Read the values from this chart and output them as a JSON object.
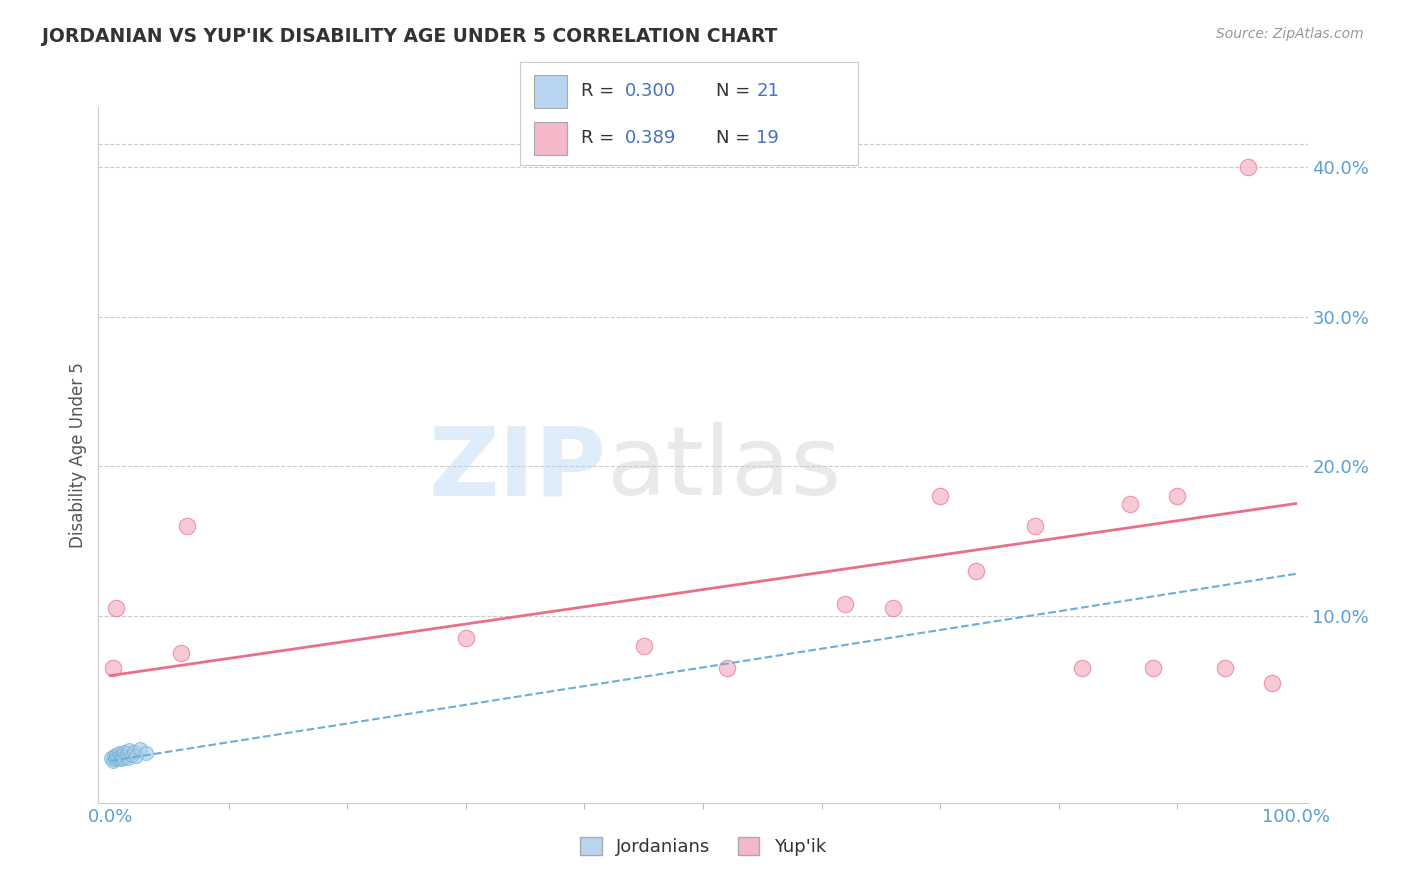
{
  "title": "JORDANIAN VS YUP'IK DISABILITY AGE UNDER 5 CORRELATION CHART",
  "source_text": "Source: ZipAtlas.com",
  "ylabel": "Disability Age Under 5",
  "jordanian_x": [
    0.001,
    0.002,
    0.003,
    0.004,
    0.005,
    0.006,
    0.007,
    0.008,
    0.009,
    0.01,
    0.011,
    0.012,
    0.013,
    0.014,
    0.015,
    0.016,
    0.018,
    0.02,
    0.022,
    0.025,
    0.03
  ],
  "jordanian_y": [
    0.005,
    0.003,
    0.006,
    0.004,
    0.007,
    0.005,
    0.008,
    0.006,
    0.004,
    0.007,
    0.005,
    0.009,
    0.006,
    0.008,
    0.005,
    0.01,
    0.007,
    0.009,
    0.006,
    0.011,
    0.008
  ],
  "yupik_x": [
    0.002,
    0.005,
    0.06,
    0.065,
    0.3,
    0.45,
    0.52,
    0.62,
    0.66,
    0.7,
    0.73,
    0.78,
    0.82,
    0.86,
    0.88,
    0.9,
    0.94,
    0.96,
    0.98
  ],
  "yupik_y": [
    0.065,
    0.105,
    0.075,
    0.16,
    0.085,
    0.08,
    0.065,
    0.108,
    0.105,
    0.18,
    0.13,
    0.16,
    0.065,
    0.175,
    0.065,
    0.18,
    0.065,
    0.4,
    0.055
  ],
  "jordan_color": "#a8cce8",
  "jordan_edge": "#6baed6",
  "yupik_color": "#f4b8c8",
  "yupik_edge": "#e87a97",
  "jordan_line_color": "#6baed6",
  "yupik_line_color": "#e8708a",
  "yupik_line_intercept": 0.06,
  "yupik_line_slope": 0.115,
  "jordan_line_intercept": 0.003,
  "jordan_line_slope": 0.125,
  "grid_color": "#cccccc",
  "title_color": "#333333",
  "axis_label_color": "#5b9fd4",
  "background_color": "#ffffff",
  "xlim_min": -0.01,
  "xlim_max": 1.01,
  "ylim_min": -0.025,
  "ylim_max": 0.44,
  "ytick_values": [
    0.1,
    0.2,
    0.3,
    0.4
  ],
  "ytick_labels": [
    "10.0%",
    "20.0%",
    "30.0%",
    "40.0%"
  ],
  "xtick_values": [
    0.0,
    1.0
  ],
  "xtick_labels": [
    "0.0%",
    "100.0%"
  ],
  "legend_box_color1": "#b8d4f0",
  "legend_box_color2": "#f4b8c8",
  "legend_text_color": "#4472c4"
}
